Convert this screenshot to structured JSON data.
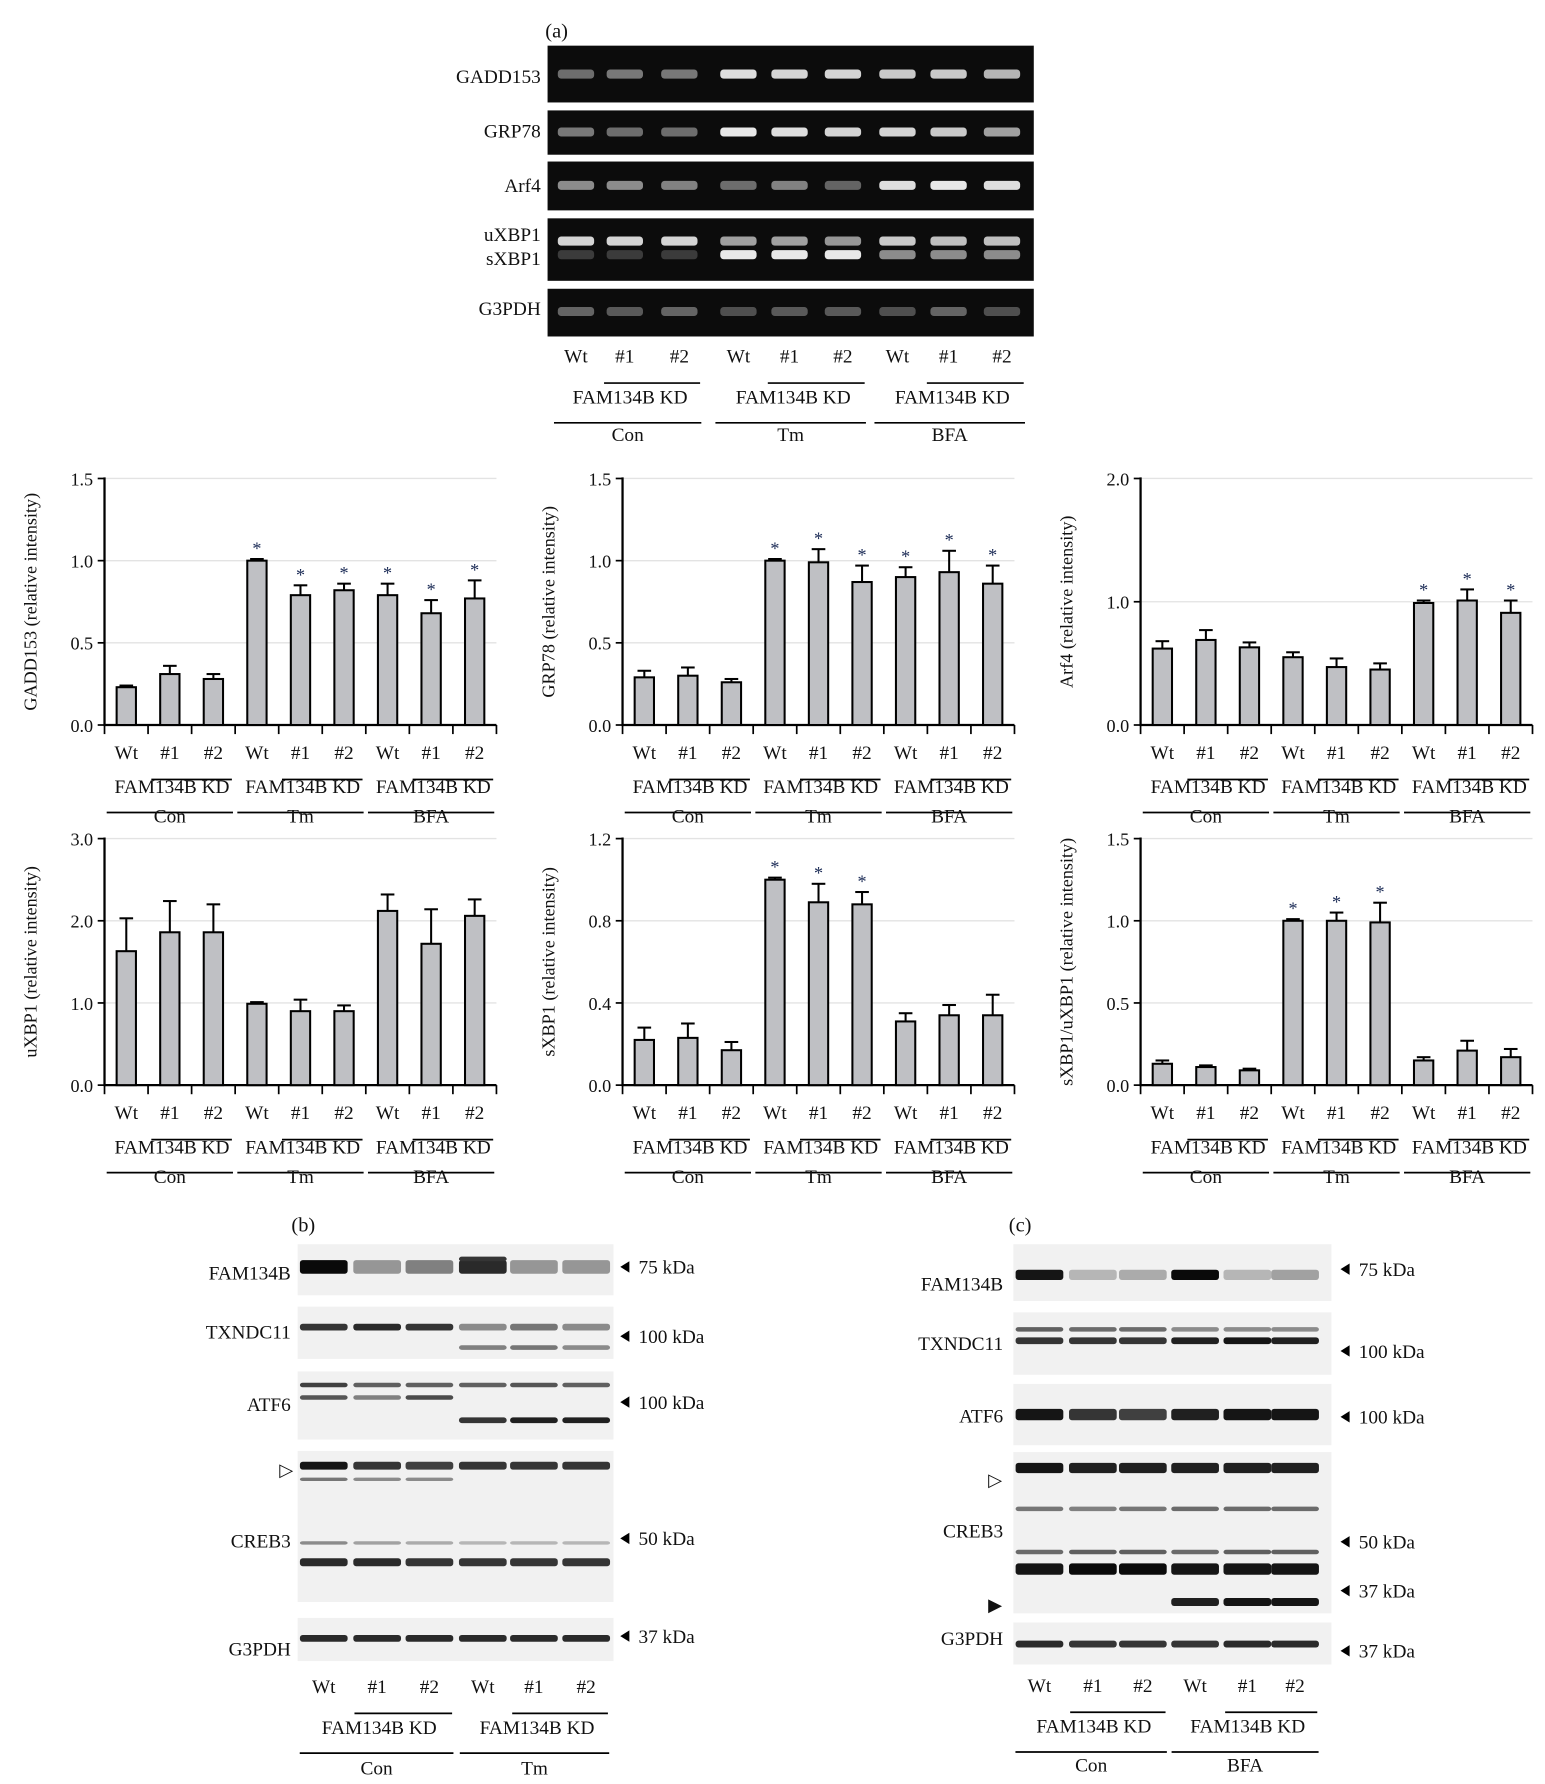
{
  "panel_a": {
    "label": "(a)",
    "rows": [
      "GADD153",
      "GRP78",
      "Arf4",
      "uXBP1",
      "sXBP1",
      "G3PDH"
    ],
    "lanes": [
      "Wt",
      "#1",
      "#2",
      "Wt",
      "#1",
      "#2",
      "Wt",
      "#1",
      "#2"
    ],
    "kd_label": "FAM134B KD",
    "groups": [
      "Con",
      "Tm",
      "BFA"
    ]
  },
  "panel_b": {
    "label": "(b)",
    "rows": [
      "FAM134B",
      "TXNDC11",
      "ATF6",
      "CREB3",
      "G3PDH"
    ],
    "markers": [
      "75 kDa",
      "100 kDa",
      "100 kDa",
      "50 kDa",
      "37 kDa"
    ],
    "open_arrow": "▷",
    "lanes": [
      "Wt",
      "#1",
      "#2",
      "Wt",
      "#1",
      "#2"
    ],
    "kd_label": "FAM134B KD",
    "groups": [
      "Con",
      "Tm"
    ]
  },
  "panel_c": {
    "label": "(c)",
    "rows": [
      "FAM134B",
      "TXNDC11",
      "ATF6",
      "CREB3",
      "G3PDH"
    ],
    "markers": [
      "75 kDa",
      "100 kDa",
      "100 kDa",
      "50 kDa",
      "37 kDa",
      "37 kDa"
    ],
    "open_arrow": "▷",
    "filled_arrow": "▶",
    "lanes": [
      "Wt",
      "#1",
      "#2",
      "Wt",
      "#1",
      "#2"
    ],
    "kd_label": "FAM134B KD",
    "groups": [
      "Con",
      "BFA"
    ]
  },
  "chart_data": [
    {
      "type": "bar",
      "ylabel": "GADD153 (relative intensity)",
      "ylim": [
        0,
        1.5
      ],
      "yticks": [
        "0.0",
        "0.5",
        "1.0",
        "1.5"
      ],
      "categories": [
        "Wt",
        "#1",
        "#2",
        "Wt",
        "#1",
        "#2",
        "Wt",
        "#1",
        "#2"
      ],
      "kd_label": "FAM134B KD",
      "groups": [
        "Con",
        "Tm",
        "BFA"
      ],
      "values": [
        0.23,
        0.31,
        0.28,
        1.0,
        0.79,
        0.82,
        0.79,
        0.68,
        0.77
      ],
      "errors": [
        0.01,
        0.05,
        0.03,
        0.01,
        0.06,
        0.04,
        0.07,
        0.08,
        0.11
      ],
      "significant": [
        false,
        false,
        false,
        true,
        true,
        true,
        true,
        true,
        true
      ],
      "marker": "*",
      "grid": true,
      "bar_color": "#bfc0c4"
    },
    {
      "type": "bar",
      "ylabel": "GRP78 (relative intensity)",
      "ylim": [
        0,
        1.5
      ],
      "yticks": [
        "0.0",
        "0.5",
        "1.0",
        "1.5"
      ],
      "categories": [
        "Wt",
        "#1",
        "#2",
        "Wt",
        "#1",
        "#2",
        "Wt",
        "#1",
        "#2"
      ],
      "kd_label": "FAM134B KD",
      "groups": [
        "Con",
        "Tm",
        "BFA"
      ],
      "values": [
        0.29,
        0.3,
        0.26,
        1.0,
        0.99,
        0.87,
        0.9,
        0.93,
        0.86
      ],
      "errors": [
        0.04,
        0.05,
        0.02,
        0.01,
        0.08,
        0.1,
        0.06,
        0.13,
        0.11
      ],
      "significant": [
        false,
        false,
        false,
        true,
        true,
        true,
        true,
        true,
        true
      ],
      "marker": "*",
      "grid": true,
      "bar_color": "#bfc0c4"
    },
    {
      "type": "bar",
      "ylabel": "Arf4 (relative intensity)",
      "ylim": [
        0,
        2.0
      ],
      "yticks": [
        "0.0",
        "1.0",
        "2.0"
      ],
      "categories": [
        "Wt",
        "#1",
        "#2",
        "Wt",
        "#1",
        "#2",
        "Wt",
        "#1",
        "#2"
      ],
      "kd_label": "FAM134B KD",
      "groups": [
        "Con",
        "Tm",
        "BFA"
      ],
      "values": [
        0.62,
        0.69,
        0.63,
        0.55,
        0.47,
        0.45,
        0.99,
        1.01,
        0.91
      ],
      "errors": [
        0.06,
        0.08,
        0.04,
        0.04,
        0.07,
        0.05,
        0.02,
        0.09,
        0.1
      ],
      "significant": [
        false,
        false,
        false,
        false,
        false,
        false,
        true,
        true,
        true
      ],
      "marker": "*",
      "grid": true,
      "bar_color": "#bfc0c4"
    },
    {
      "type": "bar",
      "ylabel": "uXBP1 (relative intensity)",
      "ylim": [
        0,
        3.0
      ],
      "yticks": [
        "0.0",
        "1.0",
        "2.0",
        "3.0"
      ],
      "categories": [
        "Wt",
        "#1",
        "#2",
        "Wt",
        "#1",
        "#2",
        "Wt",
        "#1",
        "#2"
      ],
      "kd_label": "FAM134B KD",
      "groups": [
        "Con",
        "Tm",
        "BFA"
      ],
      "values": [
        1.63,
        1.86,
        1.86,
        0.99,
        0.9,
        0.9,
        2.12,
        1.72,
        2.06
      ],
      "errors": [
        0.4,
        0.38,
        0.34,
        0.02,
        0.14,
        0.07,
        0.2,
        0.42,
        0.2
      ],
      "significant": [
        false,
        false,
        false,
        false,
        false,
        false,
        false,
        false,
        false
      ],
      "marker": "*",
      "grid": true,
      "bar_color": "#bfc0c4"
    },
    {
      "type": "bar",
      "ylabel": "sXBP1 (relative intensity)",
      "ylim": [
        0,
        1.2
      ],
      "yticks": [
        "0.0",
        "0.4",
        "0.8",
        "1.2"
      ],
      "categories": [
        "Wt",
        "#1",
        "#2",
        "Wt",
        "#1",
        "#2",
        "Wt",
        "#1",
        "#2"
      ],
      "kd_label": "FAM134B KD",
      "groups": [
        "Con",
        "Tm",
        "BFA"
      ],
      "values": [
        0.22,
        0.23,
        0.17,
        1.0,
        0.89,
        0.88,
        0.31,
        0.34,
        0.34
      ],
      "errors": [
        0.06,
        0.07,
        0.04,
        0.01,
        0.09,
        0.06,
        0.04,
        0.05,
        0.1
      ],
      "significant": [
        false,
        false,
        false,
        true,
        true,
        true,
        false,
        false,
        false
      ],
      "marker": "*",
      "grid": true,
      "bar_color": "#bfc0c4"
    },
    {
      "type": "bar",
      "ylabel": "sXBP1/uXBP1 (relative intensity)",
      "ylim": [
        0,
        1.5
      ],
      "yticks": [
        "0.0",
        "0.5",
        "1.0",
        "1.5"
      ],
      "categories": [
        "Wt",
        "#1",
        "#2",
        "Wt",
        "#1",
        "#2",
        "Wt",
        "#1",
        "#2"
      ],
      "kd_label": "FAM134B KD",
      "groups": [
        "Con",
        "Tm",
        "BFA"
      ],
      "values": [
        0.13,
        0.11,
        0.09,
        1.0,
        1.0,
        0.99,
        0.15,
        0.21,
        0.17
      ],
      "errors": [
        0.02,
        0.01,
        0.01,
        0.01,
        0.05,
        0.12,
        0.02,
        0.06,
        0.05
      ],
      "significant": [
        false,
        false,
        false,
        true,
        true,
        true,
        false,
        false,
        false
      ],
      "marker": "*",
      "grid": true,
      "bar_color": "#bfc0c4"
    }
  ]
}
